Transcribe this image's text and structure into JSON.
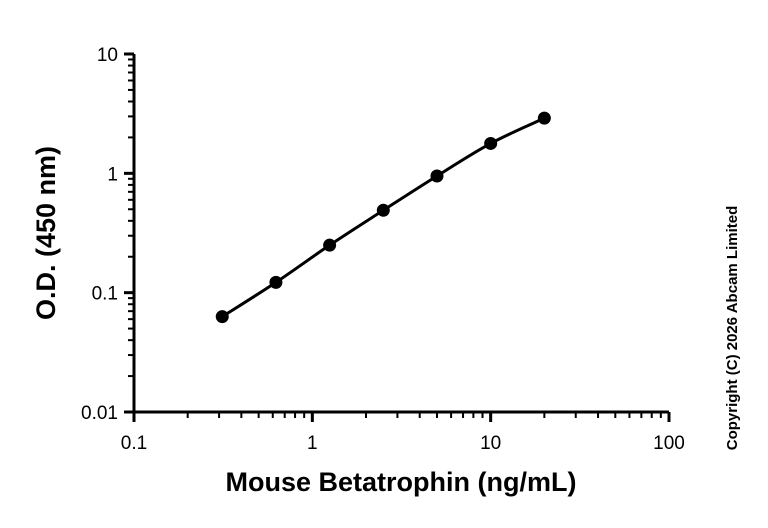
{
  "chart_data": {
    "type": "line",
    "title": "",
    "xlabel": "Mouse Betatrophin (ng/mL)",
    "ylabel": "O.D. (450 nm)",
    "xscale": "log",
    "yscale": "log",
    "xlim": [
      0.1,
      100
    ],
    "ylim": [
      0.01,
      10
    ],
    "xticks": [
      0.1,
      1,
      10,
      100
    ],
    "xtick_labels": [
      "0.1",
      "1",
      "10",
      "100"
    ],
    "yticks": [
      0.01,
      0.1,
      1,
      10
    ],
    "ytick_labels": [
      "0.01",
      "0.1",
      "1",
      "10"
    ],
    "grid": false,
    "legend": "none",
    "series": [
      {
        "x": [
          0.3125,
          0.625,
          1.25,
          2.5,
          5,
          10,
          20
        ],
        "y": [
          0.063,
          0.122,
          0.25,
          0.49,
          0.95,
          1.78,
          2.9
        ],
        "marker": "circle",
        "color": "#000000"
      }
    ]
  },
  "copyright": "Copyright (C) 2026 Abcam Limited"
}
